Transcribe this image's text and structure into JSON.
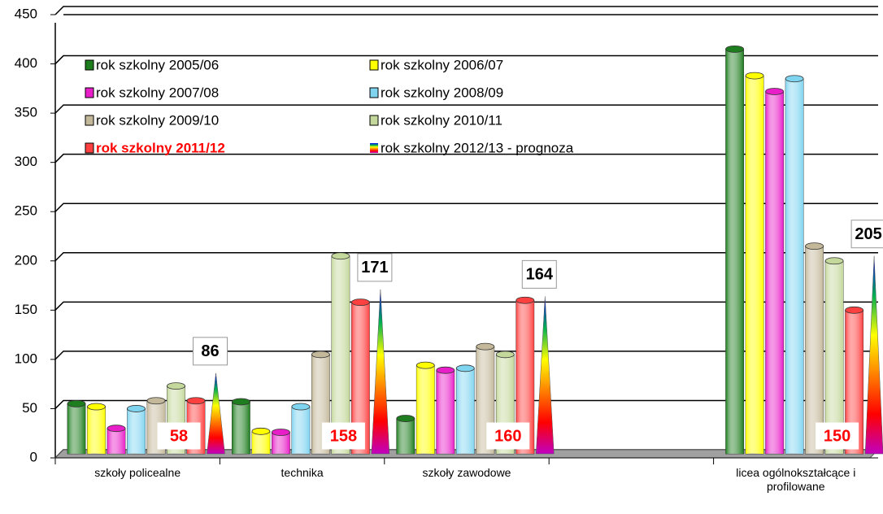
{
  "chart_data": {
    "type": "bar",
    "categories": [
      "szkoły policealne",
      "technika",
      "szkoły zawodowe",
      null,
      "licea ogólnokształcące i profilowane"
    ],
    "ylim": [
      0,
      450
    ],
    "yticks": [
      0,
      50,
      100,
      150,
      200,
      250,
      300,
      350,
      400,
      450
    ],
    "grid": true,
    "legend": "top-left",
    "series": [
      {
        "name": "rok szkolny 2005/06",
        "color": "#1e7d1e",
        "values": [
          55,
          57,
          40,
          null,
          415
        ]
      },
      {
        "name": "rok szkolny 2006/07",
        "color": "#ffff00",
        "values": [
          52,
          27,
          94,
          null,
          388
        ]
      },
      {
        "name": "rok szkolny 2007/08",
        "color": "#e81ec8",
        "values": [
          30,
          26,
          89,
          null,
          372
        ]
      },
      {
        "name": "rok szkolny 2008/09",
        "color": "#7fd4f0",
        "values": [
          50,
          52,
          91,
          null,
          385
        ]
      },
      {
        "name": "rok szkolny 2009/10",
        "color": "#c4b89a",
        "values": [
          58,
          105,
          113,
          null,
          215
        ]
      },
      {
        "name": "rok szkolny 2010/11",
        "color": "#c4d89b",
        "values": [
          73,
          205,
          105,
          null,
          200
        ]
      },
      {
        "name": "rok szkolny 2011/12",
        "color": "#ff4040",
        "values": [
          58,
          158,
          160,
          null,
          150
        ],
        "labels": true
      },
      {
        "name": "rok szkolny 2012/13 - prognoza",
        "colors": [
          "#0000ff",
          "#00b050",
          "#ffff00",
          "#ff8000",
          "#ff0000",
          "#c000c0"
        ],
        "values": [
          86,
          171,
          164,
          null,
          205
        ],
        "labels": true
      }
    ]
  }
}
